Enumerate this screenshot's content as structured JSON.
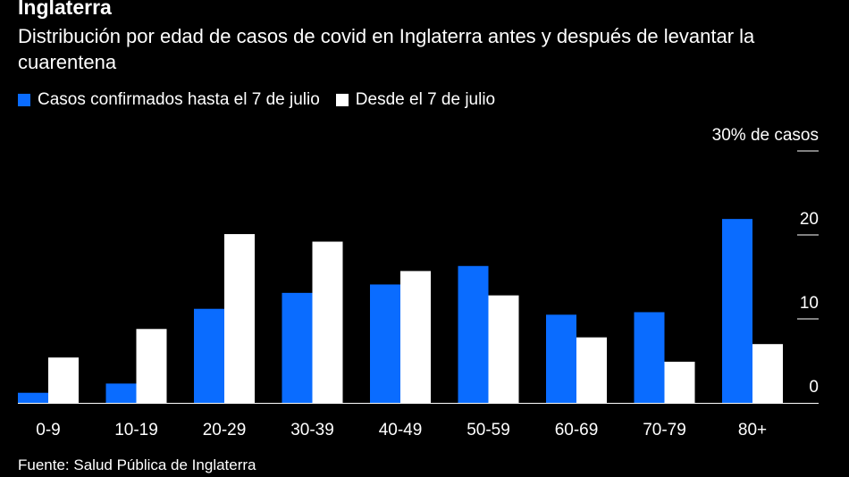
{
  "header": {
    "title": "Inglaterra",
    "subtitle": "Distribución por edad de casos de covid en Inglaterra antes y después de levantar la cuarentena"
  },
  "footer": {
    "source": "Fuente: Salud Pública de Inglaterra"
  },
  "chart_data": {
    "type": "bar",
    "categories": [
      "0-9",
      "10-19",
      "20-29",
      "30-39",
      "40-49",
      "50-59",
      "60-69",
      "70-79",
      "80+"
    ],
    "series": [
      {
        "name": "Casos confirmados hasta el 7 de julio",
        "color": "#0a6cff",
        "values": [
          1.2,
          2.3,
          11.2,
          13.1,
          14.1,
          16.3,
          10.5,
          10.8,
          21.9
        ]
      },
      {
        "name": "Desde el 7 de julio",
        "color": "#ffffff",
        "values": [
          5.4,
          8.8,
          20.1,
          19.2,
          15.7,
          12.8,
          7.8,
          4.9,
          7.0
        ]
      }
    ],
    "ylim": [
      0,
      30
    ],
    "yticks": [
      0,
      10,
      20,
      30
    ],
    "ytick_labels": [
      "0",
      "10",
      "20",
      "30% de casos"
    ],
    "y_axis_position": "right",
    "legend_position": "top-left",
    "grid": false
  }
}
